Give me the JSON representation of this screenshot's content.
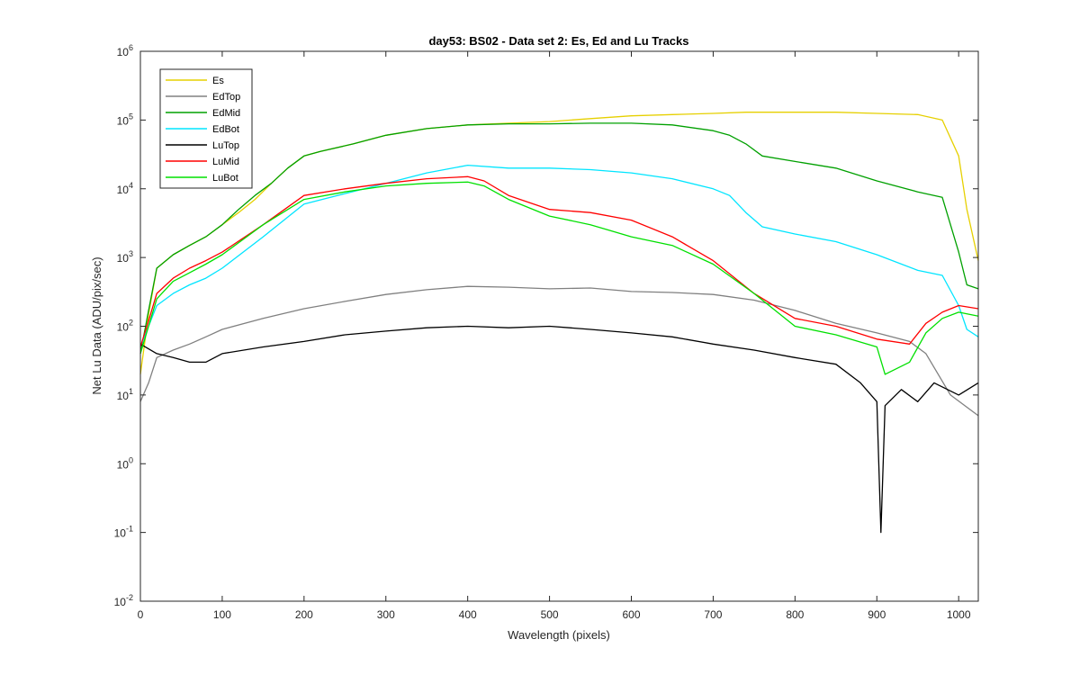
{
  "chart_data": {
    "type": "line",
    "title": "day53: BS02 - Data set 2: Es, Ed and Lu Tracks",
    "xlabel": "Wavelength (pixels)",
    "ylabel": "Net Lu Data (ADU/pix/sec)",
    "xlim": [
      0,
      1024
    ],
    "ylim": [
      0.01,
      1000000
    ],
    "yscale": "log",
    "x_ticks": [
      "0",
      "100",
      "200",
      "300",
      "400",
      "500",
      "600",
      "700",
      "800",
      "900",
      "1000"
    ],
    "y_ticks": [
      {
        "base": "10",
        "exp": "-2"
      },
      {
        "base": "10",
        "exp": "-1"
      },
      {
        "base": "10",
        "exp": "0"
      },
      {
        "base": "10",
        "exp": "1"
      },
      {
        "base": "10",
        "exp": "2"
      },
      {
        "base": "10",
        "exp": "3"
      },
      {
        "base": "10",
        "exp": "4"
      },
      {
        "base": "10",
        "exp": "5"
      },
      {
        "base": "10",
        "exp": "6"
      }
    ],
    "grid": false,
    "legend_position": "top-left",
    "series": [
      {
        "name": "Es",
        "color": "#e6d000",
        "x": [
          0,
          10,
          20,
          40,
          60,
          80,
          100,
          120,
          140,
          160,
          180,
          200,
          220,
          260,
          300,
          350,
          400,
          450,
          500,
          550,
          600,
          650,
          700,
          740,
          800,
          850,
          900,
          950,
          980,
          1000,
          1010,
          1024
        ],
        "y": [
          20,
          150,
          700,
          1100,
          1500,
          2000,
          3000,
          4500,
          7000,
          12000,
          20000,
          30000,
          35000,
          45000,
          60000,
          75000,
          85000,
          90000,
          95000,
          105000,
          115000,
          120000,
          125000,
          130000,
          130000,
          130000,
          125000,
          120000,
          100000,
          30000,
          5000,
          900
        ]
      },
      {
        "name": "EdTop",
        "color": "#808080",
        "x": [
          0,
          10,
          20,
          40,
          60,
          80,
          100,
          150,
          200,
          250,
          300,
          350,
          400,
          450,
          500,
          550,
          600,
          650,
          700,
          750,
          800,
          850,
          900,
          940,
          960,
          990,
          1024
        ],
        "y": [
          8,
          15,
          35,
          45,
          55,
          70,
          90,
          130,
          180,
          230,
          290,
          340,
          380,
          370,
          350,
          360,
          320,
          310,
          290,
          240,
          170,
          110,
          80,
          60,
          40,
          10,
          5
        ]
      },
      {
        "name": "EdMid",
        "color": "#00a000",
        "x": [
          0,
          10,
          20,
          40,
          60,
          80,
          100,
          120,
          140,
          160,
          180,
          200,
          220,
          260,
          300,
          350,
          400,
          450,
          500,
          550,
          600,
          650,
          700,
          720,
          740,
          760,
          800,
          850,
          900,
          950,
          980,
          1000,
          1010,
          1024
        ],
        "y": [
          40,
          170,
          700,
          1100,
          1500,
          2000,
          3000,
          5000,
          8000,
          12000,
          20000,
          30000,
          35000,
          45000,
          60000,
          75000,
          85000,
          88000,
          88000,
          90000,
          90000,
          85000,
          70000,
          60000,
          45000,
          30000,
          25000,
          20000,
          13000,
          9000,
          7500,
          1200,
          400,
          350
        ]
      },
      {
        "name": "EdBot",
        "color": "#00e5ff",
        "x": [
          0,
          10,
          20,
          40,
          60,
          80,
          100,
          150,
          200,
          250,
          300,
          350,
          400,
          450,
          500,
          550,
          600,
          650,
          700,
          720,
          740,
          760,
          800,
          850,
          900,
          950,
          980,
          1000,
          1010,
          1024
        ],
        "y": [
          50,
          100,
          200,
          300,
          400,
          500,
          700,
          2000,
          6000,
          8500,
          12000,
          17000,
          22000,
          20000,
          20000,
          19000,
          17000,
          14000,
          10000,
          8000,
          4500,
          2800,
          2200,
          1700,
          1100,
          650,
          550,
          200,
          90,
          70
        ]
      },
      {
        "name": "LuTop",
        "color": "#000000",
        "x": [
          0,
          20,
          40,
          60,
          80,
          100,
          150,
          200,
          250,
          300,
          350,
          400,
          450,
          500,
          550,
          600,
          650,
          700,
          750,
          800,
          850,
          880,
          900,
          905,
          910,
          930,
          950,
          970,
          1000,
          1024
        ],
        "y": [
          55,
          40,
          35,
          30,
          30,
          40,
          50,
          60,
          75,
          85,
          95,
          100,
          95,
          100,
          90,
          80,
          70,
          55,
          45,
          35,
          28,
          15,
          8,
          0.1,
          7,
          12,
          8,
          15,
          10,
          15
        ]
      },
      {
        "name": "LuMid",
        "color": "#ff0000",
        "x": [
          0,
          10,
          20,
          40,
          60,
          80,
          100,
          150,
          200,
          250,
          300,
          350,
          400,
          420,
          450,
          500,
          550,
          600,
          650,
          700,
          750,
          800,
          850,
          900,
          940,
          960,
          980,
          1000,
          1024
        ],
        "y": [
          50,
          120,
          300,
          500,
          700,
          900,
          1200,
          3000,
          8000,
          10000,
          12000,
          14000,
          15000,
          13000,
          8000,
          5000,
          4500,
          3500,
          2000,
          900,
          300,
          130,
          100,
          65,
          55,
          110,
          160,
          200,
          180
        ]
      },
      {
        "name": "LuBot",
        "color": "#00e000",
        "x": [
          0,
          10,
          20,
          40,
          60,
          80,
          100,
          150,
          200,
          250,
          300,
          350,
          400,
          420,
          450,
          500,
          550,
          600,
          650,
          700,
          750,
          800,
          850,
          900,
          910,
          940,
          960,
          980,
          1000,
          1024
        ],
        "y": [
          40,
          100,
          250,
          450,
          600,
          800,
          1100,
          3000,
          7000,
          9000,
          11000,
          12000,
          12500,
          11000,
          7000,
          4000,
          3000,
          2000,
          1500,
          800,
          300,
          100,
          75,
          50,
          20,
          30,
          80,
          130,
          160,
          140
        ]
      }
    ]
  }
}
